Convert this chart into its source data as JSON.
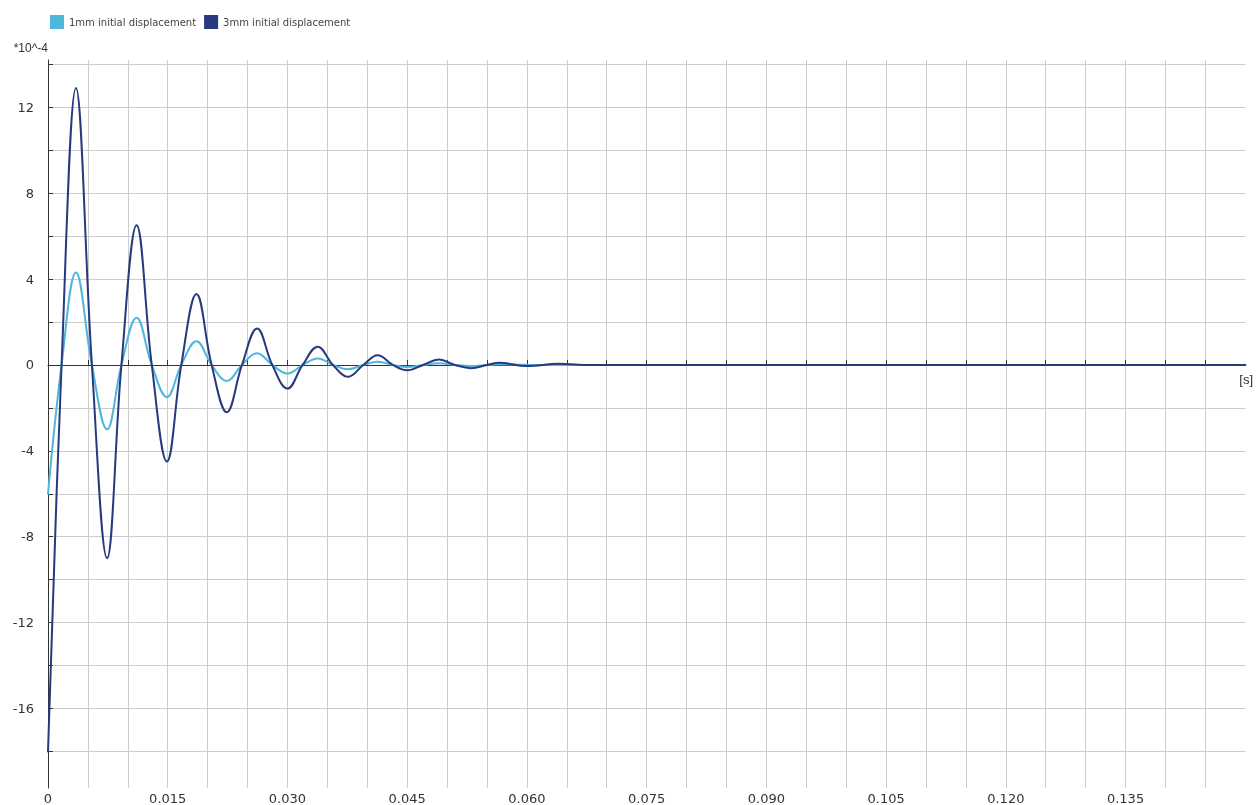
{
  "chart_data": {
    "type": "line",
    "ylabel": "*10^-4",
    "xlabel": "[s]",
    "x": [
      0,
      0.0017,
      0.0035,
      0.0055,
      0.0074,
      0.0092,
      0.0111,
      0.013,
      0.0149,
      0.0167,
      0.0186,
      0.0205,
      0.0224,
      0.0243,
      0.0262,
      0.0281,
      0.03,
      0.0319,
      0.0338,
      0.0357,
      0.0376,
      0.0395,
      0.0413,
      0.0432,
      0.045,
      0.047,
      0.049,
      0.051,
      0.053,
      0.055,
      0.0565,
      0.06,
      0.064,
      0.068,
      0.15
    ],
    "series": [
      {
        "name": "1mm initial displacement",
        "color": "#4fb6dc",
        "values": [
          -6,
          0,
          4.3,
          0,
          -3,
          0,
          2.2,
          0,
          -1.5,
          0,
          1.1,
          0,
          -0.75,
          0,
          0.55,
          0,
          -0.4,
          0,
          0.3,
          0,
          -0.2,
          0,
          0.15,
          0,
          -0.1,
          0,
          0.08,
          0,
          -0.05,
          0,
          0.03,
          0,
          0,
          0,
          0
        ]
      },
      {
        "name": "3mm initial displacement",
        "color": "#27397f",
        "values": [
          -18,
          0,
          12.9,
          0,
          -9,
          0,
          6.5,
          0,
          -4.5,
          0,
          3.3,
          0,
          -2.2,
          0,
          1.7,
          0,
          -1.1,
          0,
          0.85,
          0,
          -0.55,
          0,
          0.45,
          0,
          -0.25,
          0,
          0.25,
          0,
          -0.15,
          0,
          0.1,
          -0.05,
          0.05,
          0,
          0
        ]
      }
    ],
    "xlim": [
      0,
      0.15
    ],
    "xticks": [
      {
        "value": 0,
        "label": "0"
      },
      {
        "value": 0.005,
        "label": null
      },
      {
        "value": 0.01,
        "label": null
      },
      {
        "value": 0.015,
        "label": "0.015"
      },
      {
        "value": 0.02,
        "label": null
      },
      {
        "value": 0.025,
        "label": null
      },
      {
        "value": 0.03,
        "label": "0.030"
      },
      {
        "value": 0.035,
        "label": null
      },
      {
        "value": 0.04,
        "label": null
      },
      {
        "value": 0.045,
        "label": "0.045"
      },
      {
        "value": 0.05,
        "label": null
      },
      {
        "value": 0.055,
        "label": null
      },
      {
        "value": 0.06,
        "label": "0.060"
      },
      {
        "value": 0.065,
        "label": null
      },
      {
        "value": 0.07,
        "label": null
      },
      {
        "value": 0.075,
        "label": "0.075"
      },
      {
        "value": 0.08,
        "label": null
      },
      {
        "value": 0.085,
        "label": null
      },
      {
        "value": 0.09,
        "label": "0.090"
      },
      {
        "value": 0.095,
        "label": null
      },
      {
        "value": 0.1,
        "label": null
      },
      {
        "value": 0.105,
        "label": "0.105"
      },
      {
        "value": 0.11,
        "label": null
      },
      {
        "value": 0.115,
        "label": null
      },
      {
        "value": 0.12,
        "label": "0.120"
      },
      {
        "value": 0.125,
        "label": null
      },
      {
        "value": 0.13,
        "label": null
      },
      {
        "value": 0.135,
        "label": "0.135"
      },
      {
        "value": 0.14,
        "label": null
      },
      {
        "value": 0.145,
        "label": null
      }
    ],
    "ylim": [
      -19.7,
      14.2
    ],
    "yticks": [
      {
        "value": -18,
        "label": null
      },
      -16,
      {
        "value": -14,
        "label": null
      },
      -12,
      {
        "value": -10,
        "label": null
      },
      -8,
      {
        "value": -6,
        "label": null
      },
      -4,
      {
        "value": -2,
        "label": null
      },
      0,
      {
        "value": 2,
        "label": null
      },
      4,
      {
        "value": 6,
        "label": null
      },
      8,
      {
        "value": 10,
        "label": null
      },
      12,
      {
        "value": 14,
        "label": null
      }
    ],
    "grid": true,
    "legend": "top left",
    "marker": "none",
    "line_style": "solid"
  }
}
